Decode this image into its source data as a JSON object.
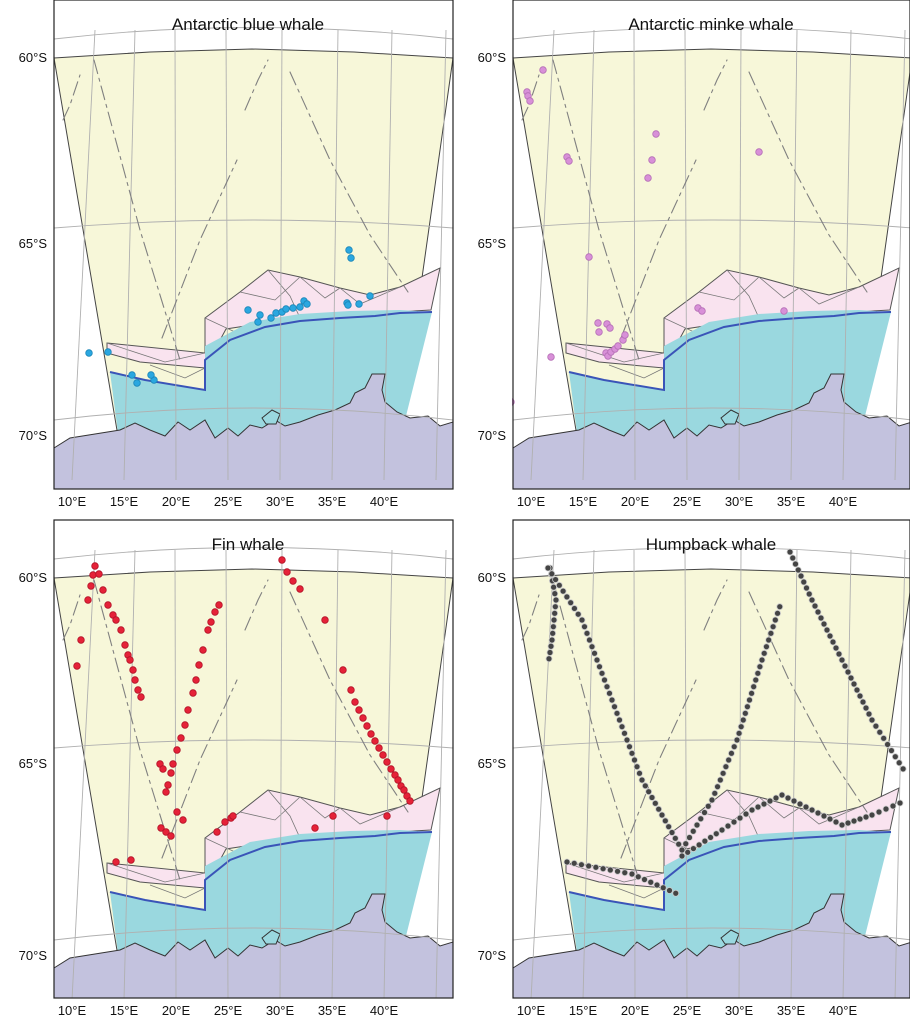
{
  "figure": {
    "colors": {
      "open_ocean": "#f7f7d9",
      "marginal_zone": "#f9e3ef",
      "shelf_water": "#9ad8df",
      "shelf_front_line": "#3a54b8",
      "continent": "#c3c2de",
      "grid": "#b0b0b0",
      "track": "#808080",
      "background": "#ffffff"
    },
    "latitude_labels": [
      "60°S",
      "65°S",
      "70°S"
    ],
    "longitude_labels": [
      "10°E",
      "15°E",
      "20°E",
      "25°E",
      "30°E",
      "35°E",
      "40°E"
    ],
    "panels": [
      {
        "title": "Antarctic blue whale",
        "dot_color": "#2aa7e0",
        "dot_stroke": "#1b86b8"
      },
      {
        "title": "Antarctic minke whale",
        "dot_color": "#d890d8",
        "dot_stroke": "#b56fb6"
      },
      {
        "title": "Fin whale",
        "dot_color": "#e52238",
        "dot_stroke": "#b31328"
      },
      {
        "title": "Humpback whale",
        "dot_color": "#444444",
        "dot_stroke": "#cccccc"
      }
    ]
  }
}
